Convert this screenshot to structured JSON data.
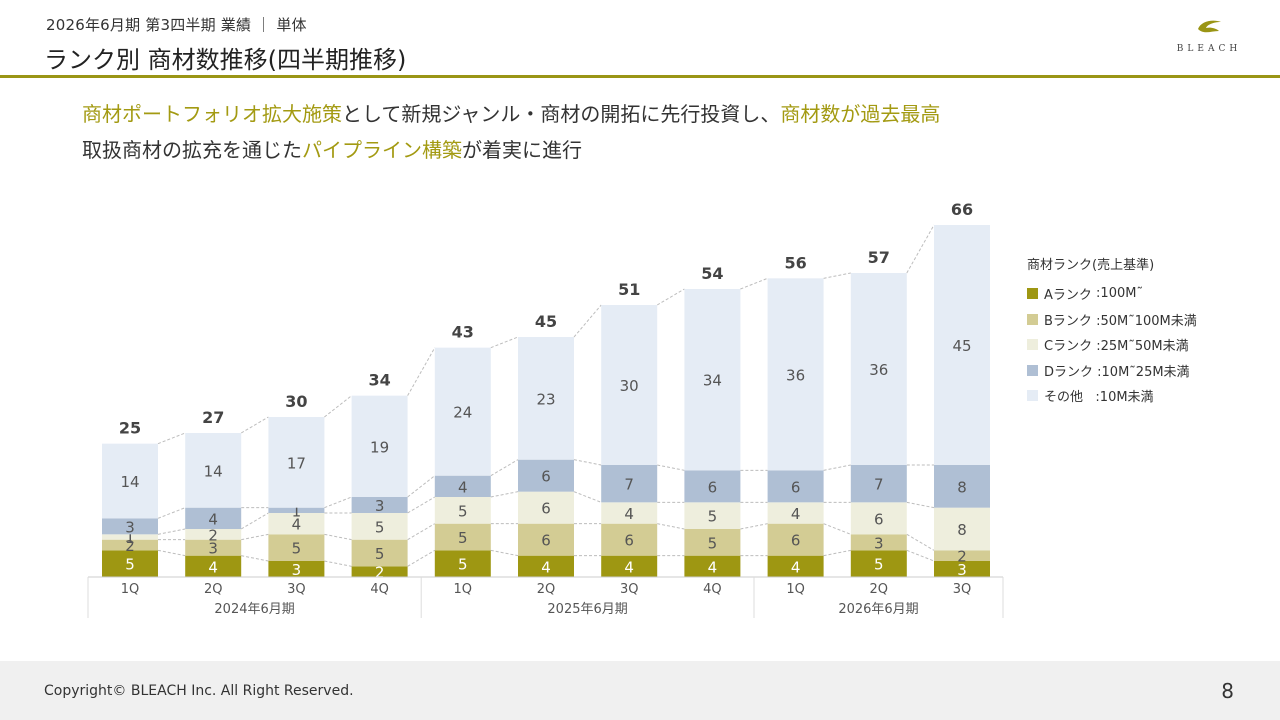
{
  "header": {
    "subtitle": "2026年6月期 第3四半期 業績 ｜ 単体",
    "title": "ランク別 商材数推移(四半期推移)",
    "logo_text": "BLEACH"
  },
  "lead": {
    "line1": [
      {
        "text": "商材ポートフォリオ拡大施策",
        "highlight": true
      },
      {
        "text": "として新規ジャンル・商材の開拓に先行投資し、",
        "highlight": false
      },
      {
        "text": "商材数が過去最高",
        "highlight": true
      }
    ],
    "line2": [
      {
        "text": "取扱商材の拡充を通じた",
        "highlight": false
      },
      {
        "text": "パイプライン構築",
        "highlight": true
      },
      {
        "text": "が着実に進行",
        "highlight": false
      }
    ]
  },
  "chart_data": {
    "type": "bar",
    "stacked": true,
    "categories": [
      "1Q",
      "2Q",
      "3Q",
      "4Q",
      "1Q",
      "2Q",
      "3Q",
      "4Q",
      "1Q",
      "2Q",
      "3Q"
    ],
    "groups": [
      {
        "label": "2024年6月期",
        "count": 4
      },
      {
        "label": "2025年6月期",
        "count": 4
      },
      {
        "label": "2026年6月期",
        "count": 3
      }
    ],
    "series": [
      {
        "name": "Aランク",
        "range": ":100M˜",
        "color": "#9e9712",
        "label_color": "#ffffff",
        "values": [
          5,
          4,
          3,
          2,
          5,
          4,
          4,
          4,
          4,
          5,
          3
        ]
      },
      {
        "name": "Bランク",
        "range": ":50M˜100M未満",
        "color": "#d3cc94",
        "label_color": "#555555",
        "values": [
          2,
          3,
          5,
          5,
          5,
          6,
          6,
          5,
          6,
          3,
          2
        ]
      },
      {
        "name": "Cランク",
        "range": ":25M˜50M未満",
        "color": "#eeeedd",
        "label_color": "#555555",
        "values": [
          1,
          2,
          4,
          5,
          5,
          6,
          4,
          5,
          4,
          6,
          8
        ]
      },
      {
        "name": "Dランク",
        "range": ":10M˜25M未満",
        "color": "#afbfd4",
        "label_color": "#555555",
        "values": [
          3,
          4,
          1,
          3,
          4,
          6,
          7,
          6,
          6,
          7,
          8
        ]
      },
      {
        "name": "その他",
        "range": ":10M未満",
        "color": "#e5ecf5",
        "label_color": "#555555",
        "values": [
          14,
          14,
          17,
          19,
          24,
          23,
          30,
          34,
          36,
          36,
          45
        ]
      }
    ],
    "totals": [
      25,
      27,
      30,
      34,
      43,
      45,
      51,
      54,
      56,
      57,
      66
    ],
    "legend_title": "商材ランク(売上基準)",
    "legend_position": "right",
    "ylim": [
      0,
      66
    ]
  },
  "footer": {
    "copyright": "Copyright© BLEACH Inc. All Right Reserved.",
    "page_number": "8"
  }
}
